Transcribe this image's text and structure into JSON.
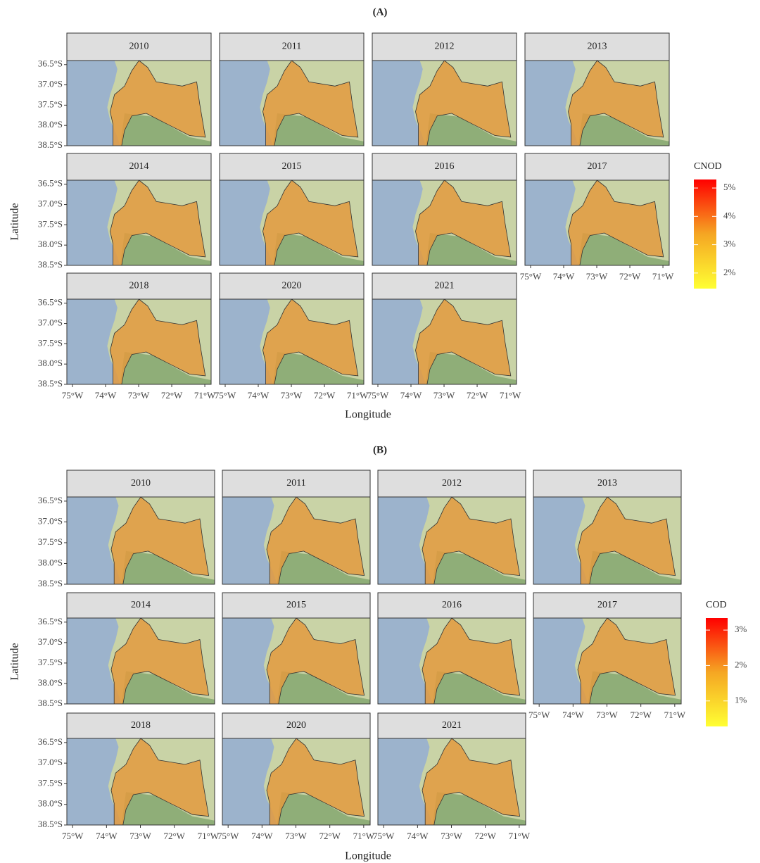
{
  "panels": [
    {
      "label": "(A)",
      "facets": [
        "2010",
        "2011",
        "2012",
        "2013",
        "2014",
        "2015",
        "2016",
        "2017",
        "2018",
        "2020",
        "2021"
      ],
      "lat_ticks": [
        {
          "value": -36.5,
          "label": "36.5°S"
        },
        {
          "value": -37.0,
          "label": "37.0°S"
        },
        {
          "value": -37.5,
          "label": "37.5°S"
        },
        {
          "value": -38.0,
          "label": "38.0°S"
        },
        {
          "value": -38.5,
          "label": "38.5°S"
        }
      ],
      "lon_ticks": [
        {
          "value": -75,
          "label": "75°W"
        },
        {
          "value": -74,
          "label": "74°W"
        },
        {
          "value": -73,
          "label": "73°W"
        },
        {
          "value": -72,
          "label": "72°W"
        },
        {
          "value": -71,
          "label": "71°W"
        }
      ],
      "xlim": [
        -75.17,
        -70.81
      ],
      "ylim": [
        -38.5,
        -36.4
      ],
      "x_label": "Longitude",
      "y_label": "Latitude",
      "legend": {
        "title": "CNOD",
        "lim": [
          1.45,
          5.3
        ],
        "ticks": [
          {
            "value": 2,
            "label": "2%"
          },
          {
            "value": 3,
            "label": "3%"
          },
          {
            "value": 4,
            "label": "4%"
          },
          {
            "value": 5,
            "label": "5%"
          }
        ],
        "colors": [
          "#ffff33",
          "#f5a623",
          "#ff0000"
        ]
      }
    },
    {
      "label": "(B)",
      "facets": [
        "2010",
        "2011",
        "2012",
        "2013",
        "2014",
        "2015",
        "2016",
        "2017",
        "2018",
        "2020",
        "2021"
      ],
      "lat_ticks": [
        {
          "value": -36.5,
          "label": "36.5°S"
        },
        {
          "value": -37.0,
          "label": "37.0°S"
        },
        {
          "value": -37.5,
          "label": "37.5°S"
        },
        {
          "value": -38.0,
          "label": "38.0°S"
        },
        {
          "value": -38.5,
          "label": "38.5°S"
        }
      ],
      "lon_ticks": [
        {
          "value": -75,
          "label": "75°W"
        },
        {
          "value": -74,
          "label": "74°W"
        },
        {
          "value": -73,
          "label": "73°W"
        },
        {
          "value": -72,
          "label": "72°W"
        },
        {
          "value": -71,
          "label": "71°W"
        }
      ],
      "xlim": [
        -75.17,
        -70.81
      ],
      "ylim": [
        -38.5,
        -36.4
      ],
      "x_label": "Longitude",
      "y_label": "Latitude",
      "legend": {
        "title": "COD",
        "lim": [
          0.28,
          3.34
        ],
        "ticks": [
          {
            "value": 1,
            "label": "1%"
          },
          {
            "value": 2,
            "label": "2%"
          },
          {
            "value": 3,
            "label": "3%"
          }
        ],
        "colors": [
          "#ffff33",
          "#f5a623",
          "#ff0000"
        ]
      }
    }
  ]
}
